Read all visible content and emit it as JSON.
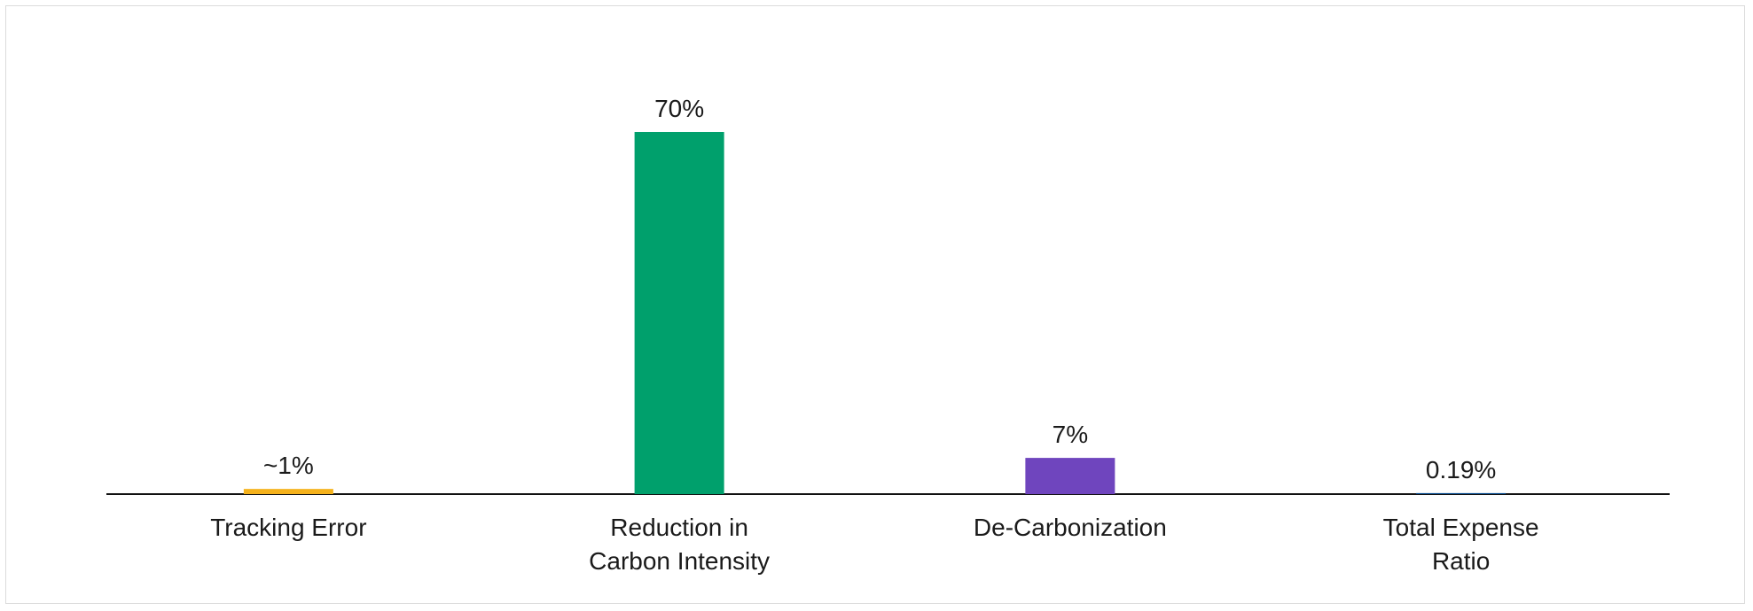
{
  "chart_data": {
    "type": "bar",
    "categories": [
      "Tracking Error",
      "Reduction in Carbon Intensity",
      "De-Carbonization",
      "Total Expense Ratio"
    ],
    "values": [
      1,
      70,
      7,
      0.19
    ],
    "value_labels": [
      "~1%",
      "70%",
      "7%",
      "0.19%"
    ],
    "colors": [
      "#f5b21c",
      "#00a06c",
      "#6f45be",
      "#00468b"
    ]
  }
}
